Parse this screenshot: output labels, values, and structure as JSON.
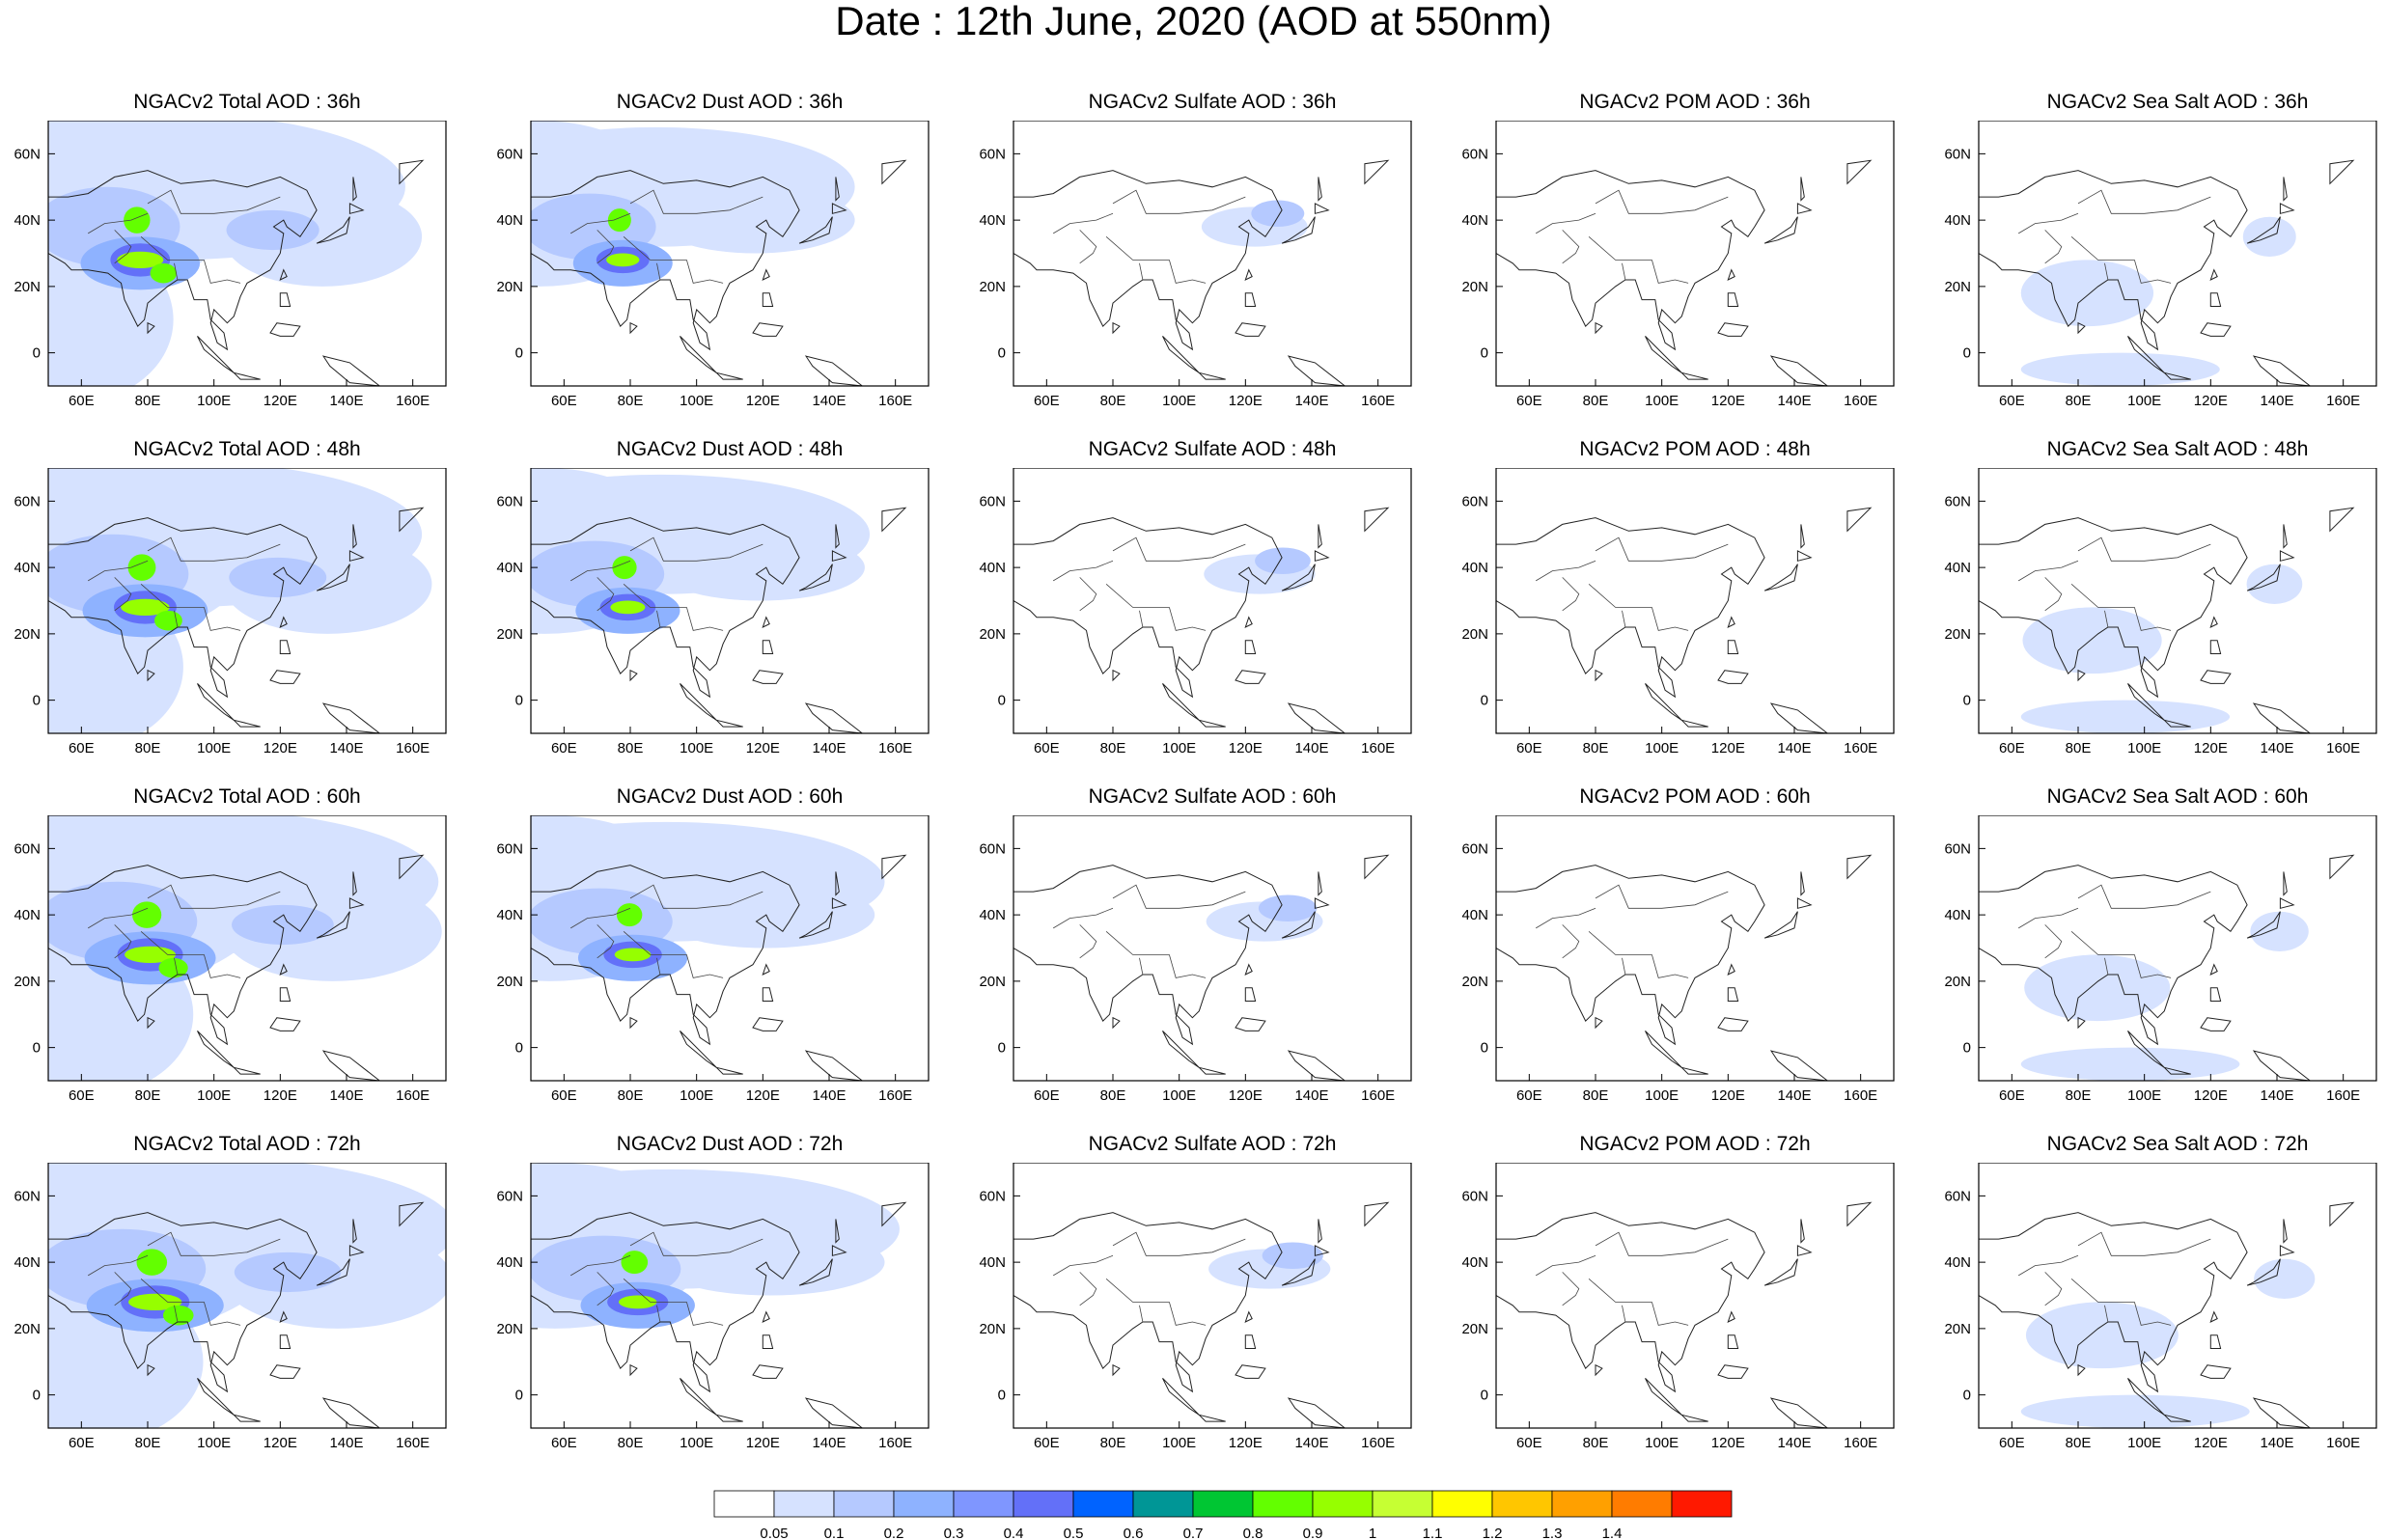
{
  "title": "Date : 12th June, 2020 (AOD at 550nm)",
  "panel_titles": [
    [
      "NGACv2 Total AOD : 36h",
      "NGACv2 Dust AOD : 36h",
      "NGACv2 Sulfate AOD : 36h",
      "NGACv2 POM AOD : 36h",
      "NGACv2 Sea Salt AOD : 36h"
    ],
    [
      "NGACv2 Total AOD : 48h",
      "NGACv2 Dust AOD : 48h",
      "NGACv2 Sulfate AOD : 48h",
      "NGACv2 POM AOD : 48h",
      "NGACv2 Sea Salt AOD : 48h"
    ],
    [
      "NGACv2 Total AOD : 60h",
      "NGACv2 Dust AOD : 60h",
      "NGACv2 Sulfate AOD : 60h",
      "NGACv2 POM AOD : 60h",
      "NGACv2 Sea Salt AOD : 60h"
    ],
    [
      "NGACv2 Total AOD : 72h",
      "NGACv2 Dust AOD : 72h",
      "NGACv2 Sulfate AOD : 72h",
      "NGACv2 POM AOD : 72h",
      "NGACv2 Sea Salt  AOD : 72h"
    ]
  ],
  "lon_ticks": [
    "60E",
    "80E",
    "100E",
    "120E",
    "140E",
    "160E"
  ],
  "lat_ticks": [
    "60N",
    "40N",
    "20N",
    "0"
  ],
  "colorbar": {
    "labels": [
      "0.05",
      "0.1",
      "0.2",
      "0.3",
      "0.4",
      "0.5",
      "0.6",
      "0.7",
      "0.8",
      "0.9",
      "1",
      "1.1",
      "1.2",
      "1.3",
      "1.4"
    ],
    "colors": [
      "#ffffff",
      "#d6e2ff",
      "#b5c9ff",
      "#8eb2ff",
      "#7f96ff",
      "#6370f8",
      "#0063ff",
      "#009696",
      "#00c633",
      "#63ff00",
      "#96ff00",
      "#c6ff33",
      "#ffff00",
      "#ffc600",
      "#ffa000",
      "#ff7c00",
      "#ff1900"
    ]
  }
}
